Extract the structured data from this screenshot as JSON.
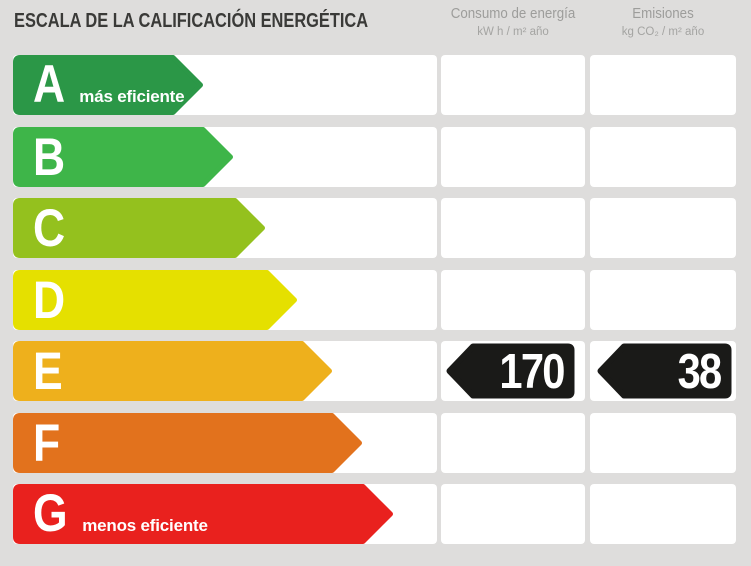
{
  "title": "ESCALA DE LA CALIFICACIÓN ENERGÉTICA",
  "columns": [
    {
      "label": "Consumo de energía",
      "units": "kW h / m² año"
    },
    {
      "label": "Emisiones",
      "units": "kg CO₂ / m² año"
    }
  ],
  "ratings": [
    {
      "letter": "A",
      "qualifier": "más eficiente",
      "color": "#2b9747",
      "bar_length": 190,
      "consumption": null,
      "emissions": null
    },
    {
      "letter": "B",
      "qualifier": "",
      "color": "#3eb549",
      "bar_length": 220,
      "consumption": null,
      "emissions": null
    },
    {
      "letter": "C",
      "qualifier": "",
      "color": "#94c11e",
      "bar_length": 252,
      "consumption": null,
      "emissions": null
    },
    {
      "letter": "D",
      "qualifier": "",
      "color": "#e5e000",
      "bar_length": 284,
      "consumption": null,
      "emissions": null
    },
    {
      "letter": "E",
      "qualifier": "",
      "color": "#eeb01c",
      "bar_length": 319,
      "consumption": "170",
      "emissions": "38"
    },
    {
      "letter": "F",
      "qualifier": "",
      "color": "#e2721d",
      "bar_length": 349,
      "consumption": null,
      "emissions": null
    },
    {
      "letter": "G",
      "qualifier": "menos eficiente",
      "color": "#e9211e",
      "bar_length": 380,
      "consumption": null,
      "emissions": null
    }
  ],
  "value_marker_color": "#1a1a18",
  "chart_data": {
    "type": "bar",
    "title": "ESCALA DE LA CALIFICACIÓN ENERGÉTICA",
    "categories": [
      "A",
      "B",
      "C",
      "D",
      "E",
      "F",
      "G"
    ],
    "bar_colors": [
      "#2b9747",
      "#3eb549",
      "#94c11e",
      "#e5e000",
      "#eeb01c",
      "#e2721d",
      "#e9211e"
    ],
    "bar_relative_lengths": [
      190,
      220,
      252,
      284,
      319,
      349,
      380
    ],
    "annotations": {
      "A": "más eficiente",
      "G": "menos eficiente"
    },
    "assigned_rating": "E",
    "series": [
      {
        "name": "Consumo de energía (kW h / m² año)",
        "values": [
          null,
          null,
          null,
          null,
          170,
          null,
          null
        ]
      },
      {
        "name": "Emisiones (kg CO₂ / m² año)",
        "values": [
          null,
          null,
          null,
          null,
          38,
          null,
          null
        ]
      }
    ]
  }
}
